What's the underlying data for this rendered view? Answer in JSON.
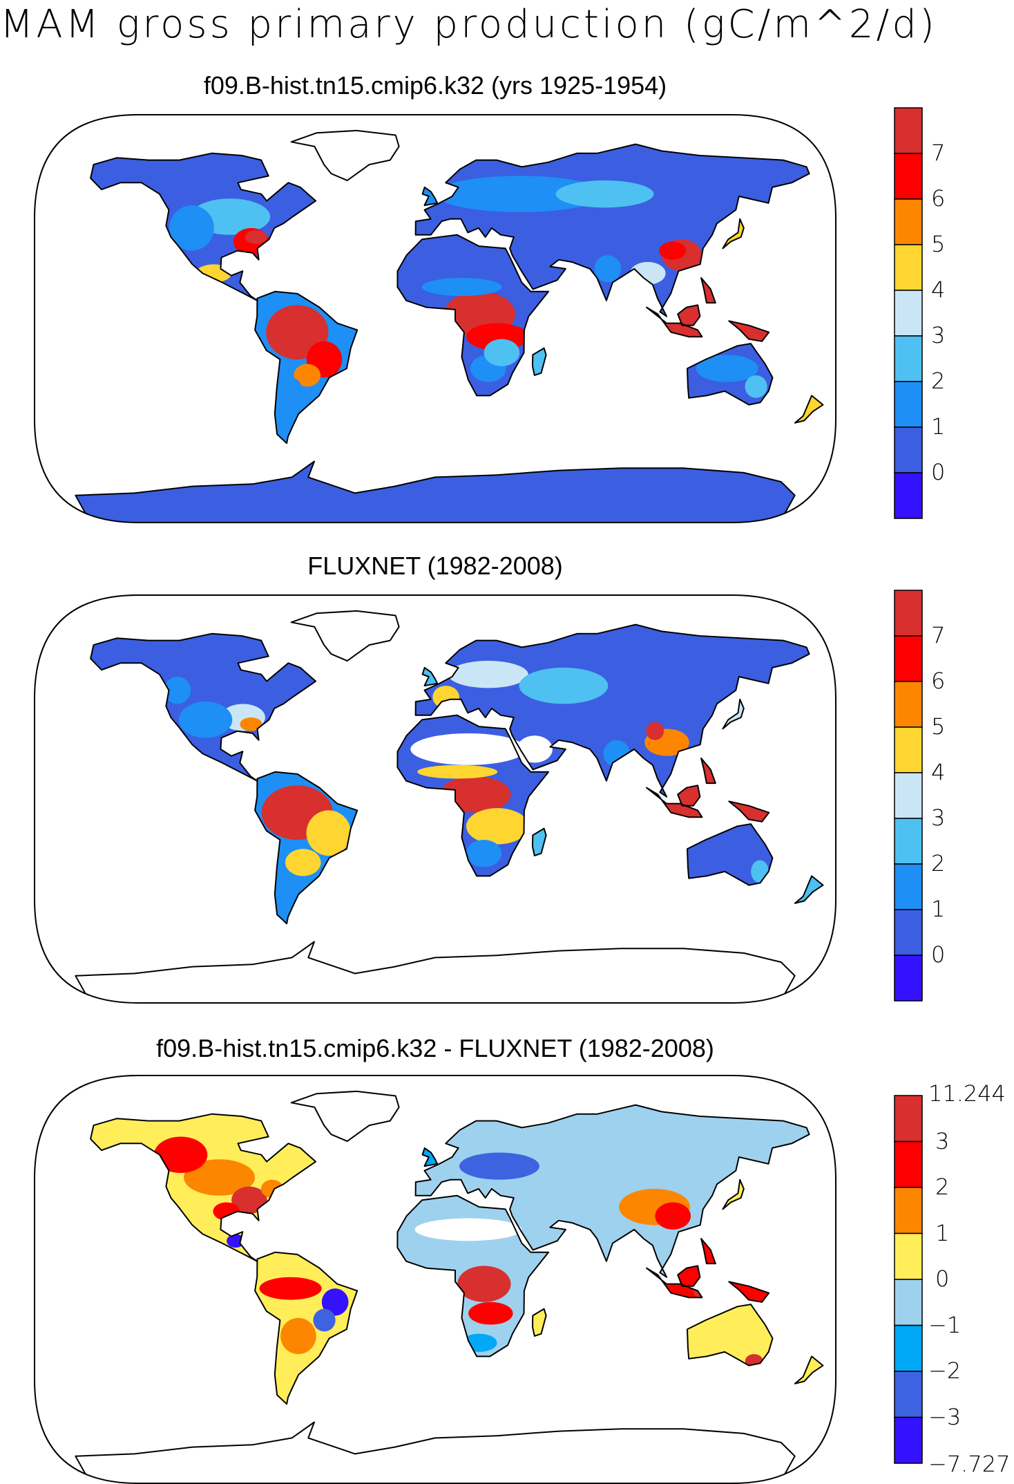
{
  "title": "MAM gross primary production (gC/m^2/d)",
  "panels": [
    {
      "id": "model",
      "title": "f09.B-hist.tn15.cmip6.k32 (yrs 1925-1954)",
      "colorbar": {
        "labels": [
          "7",
          "6",
          "5",
          "4",
          "3",
          "2",
          "1",
          "0"
        ],
        "colors": [
          "#d7302f",
          "#fe0000",
          "#fd8600",
          "#ffd531",
          "#cae6f6",
          "#4fc0f2",
          "#1e8ff5",
          "#3b5fe0",
          "#3411ff"
        ]
      }
    },
    {
      "id": "obs",
      "title": "FLUXNET (1982-2008)",
      "colorbar": {
        "labels": [
          "7",
          "6",
          "5",
          "4",
          "3",
          "2",
          "1",
          "0"
        ],
        "colors": [
          "#d7302f",
          "#fe0000",
          "#fd8600",
          "#ffd531",
          "#cae6f6",
          "#4fc0f2",
          "#1e8ff5",
          "#3b5fe0",
          "#3411ff"
        ]
      }
    },
    {
      "id": "diff",
      "title": "f09.B-hist.tn15.cmip6.k32 - FLUXNET (1982-2008)",
      "colorbar": {
        "labels": [
          "11.244",
          "3",
          "2",
          "1",
          "0",
          "−1",
          "−2",
          "−3",
          "−7.727"
        ],
        "colors": [
          "#d7302f",
          "#fe0000",
          "#fd8600",
          "#ffee5a",
          "#9ed1ee",
          "#00a8f7",
          "#3e63e0",
          "#3411ff"
        ]
      }
    }
  ]
}
